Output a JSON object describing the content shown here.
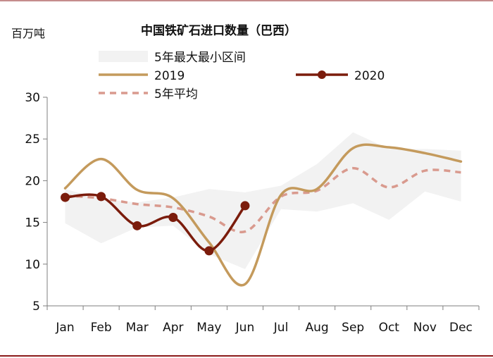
{
  "chart_data": {
    "type": "line",
    "title": "中国铁矿石进口数量（巴西）",
    "ylabel": "百万吨",
    "xlabel": "",
    "ylim": [
      5,
      30
    ],
    "yticks": [
      5,
      10,
      15,
      20,
      25,
      30
    ],
    "categories": [
      "Jan",
      "Feb",
      "Mar",
      "Apr",
      "May",
      "Jun",
      "Jul",
      "Aug",
      "Sep",
      "Oct",
      "Nov",
      "Dec"
    ],
    "grid": false,
    "legend_position": "top",
    "series": [
      {
        "name": "5年最大最小区间",
        "kind": "band",
        "color": "#f2f2f2",
        "upper": [
          19.0,
          17.8,
          17.4,
          18.0,
          19.0,
          18.6,
          19.4,
          22.0,
          25.8,
          23.8,
          23.8,
          23.6
        ],
        "lower": [
          14.9,
          12.5,
          14.4,
          14.6,
          11.2,
          9.4,
          16.6,
          16.3,
          17.3,
          15.3,
          18.7,
          17.5
        ]
      },
      {
        "name": "2019",
        "kind": "line",
        "color": "#c49a5c",
        "values": [
          19.1,
          22.6,
          18.9,
          17.9,
          12.6,
          7.6,
          18.3,
          19.0,
          23.9,
          24.0,
          23.3,
          22.3
        ]
      },
      {
        "name": "2020",
        "kind": "line-markers",
        "color": "#7b1c0c",
        "values": [
          18.0,
          18.1,
          14.6,
          15.6,
          11.6,
          17.0,
          null,
          null,
          null,
          null,
          null,
          null
        ]
      },
      {
        "name": "5年平均",
        "kind": "dashed",
        "color": "#d99a8e",
        "values": [
          18.2,
          17.9,
          17.2,
          16.8,
          15.7,
          13.9,
          18.1,
          18.8,
          21.5,
          19.2,
          21.2,
          21.0
        ]
      }
    ]
  }
}
